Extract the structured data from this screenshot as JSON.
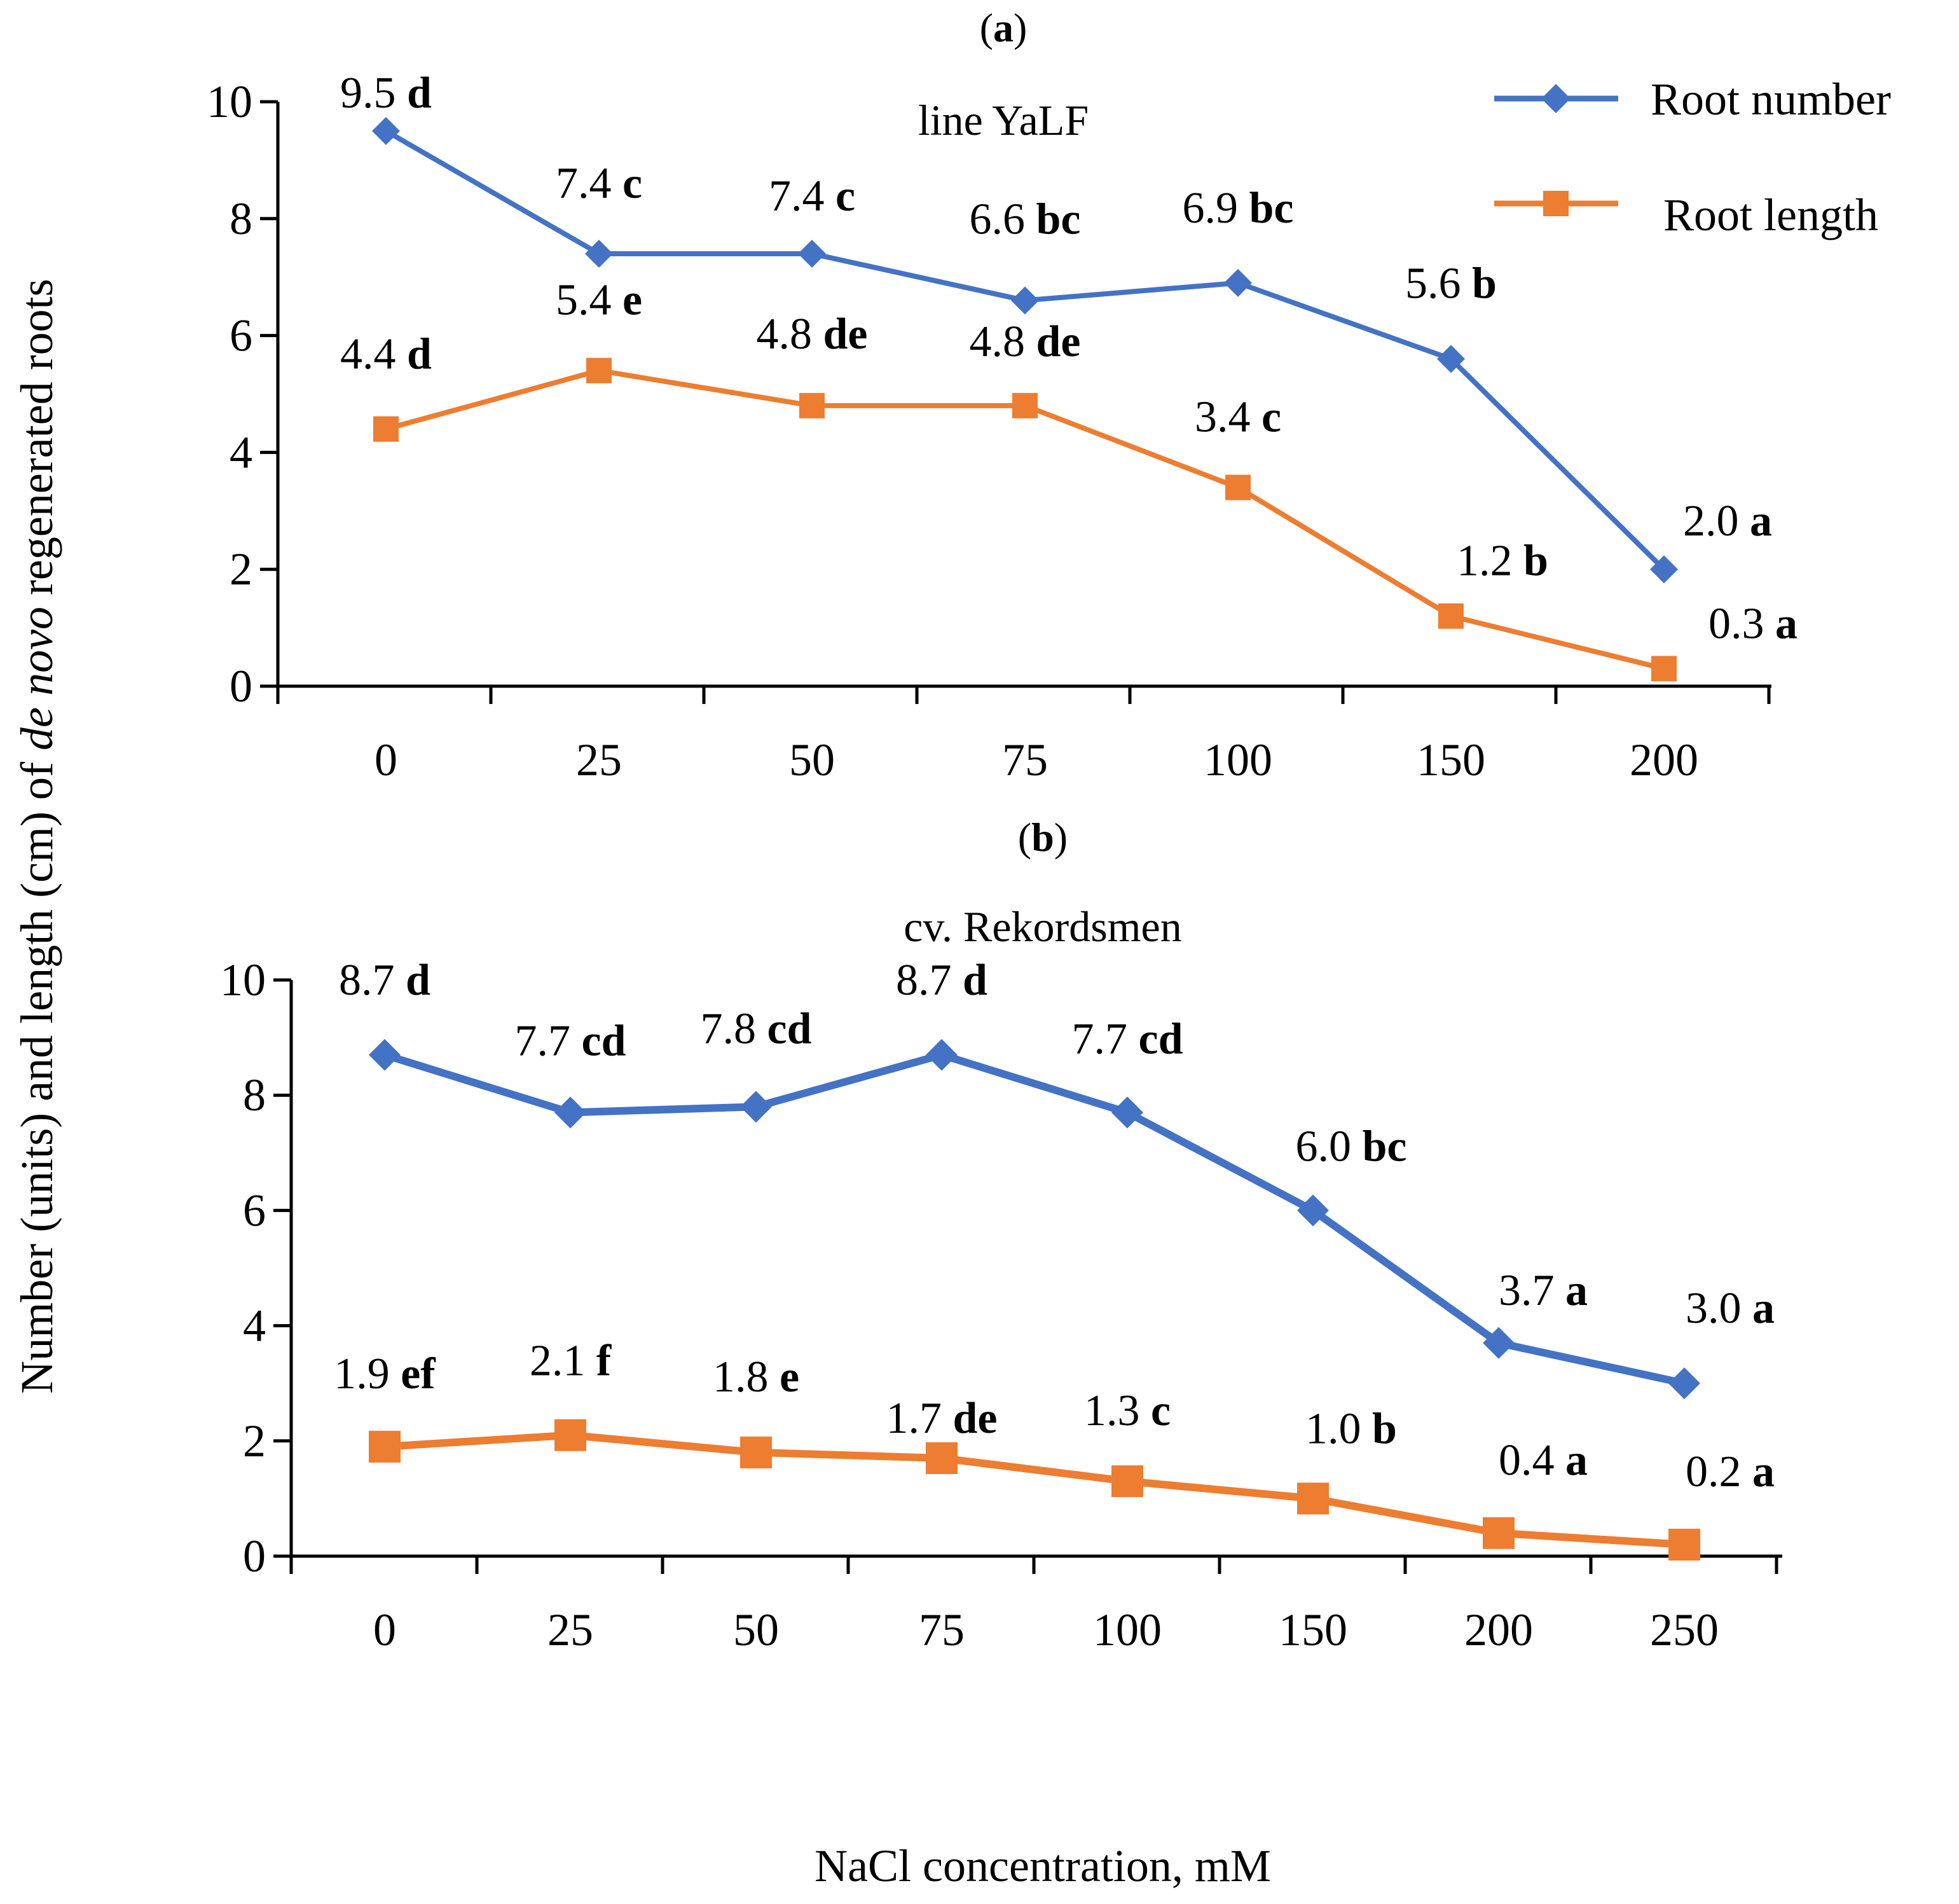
{
  "figure": {
    "y_axis_label": "Number (units) and length (cm) of ",
    "y_axis_label_italic": "de novo",
    "y_axis_label_tail": " regenerated roots",
    "x_axis_label": "NaCl concentration, mM"
  },
  "legend": {
    "items": [
      {
        "label": "Root number",
        "color": "#4472C4",
        "marker": "diamond"
      },
      {
        "label": "Root length",
        "color": "#ED7D31",
        "marker": "square"
      }
    ]
  },
  "chart_data": [
    {
      "type": "line",
      "panel_label": "(a)",
      "panel_letter": "a",
      "subtitle": "line YaLF",
      "categories": [
        "0",
        "25",
        "50",
        "75",
        "100",
        "150",
        "200"
      ],
      "ylim": [
        0,
        10
      ],
      "yticks": [
        "0",
        "2",
        "4",
        "6",
        "8",
        "10"
      ],
      "series": [
        {
          "name": "Root number",
          "color": "#4472C4",
          "marker": "diamond",
          "values": [
            9.5,
            7.4,
            7.4,
            6.6,
            6.9,
            5.6,
            2.0
          ],
          "labels": [
            "9.5",
            "7.4",
            "7.4",
            "6.6",
            "6.9",
            "5.6",
            "2.0"
          ],
          "letters": [
            "d",
            "c",
            "c",
            "bc",
            "bc",
            "b",
            "a"
          ]
        },
        {
          "name": "Root length",
          "color": "#ED7D31",
          "marker": "square",
          "values": [
            4.4,
            5.4,
            4.8,
            4.8,
            3.4,
            1.2,
            0.3
          ],
          "labels": [
            "4.4",
            "5.4",
            "4.8",
            "4.8",
            "3.4",
            "1.2",
            "0.3"
          ],
          "letters": [
            "d",
            "e",
            "de",
            "de",
            "c",
            "b",
            "a"
          ]
        }
      ]
    },
    {
      "type": "line",
      "panel_label": "(b)",
      "panel_letter": "b",
      "subtitle": "cv. Rekordsmen",
      "categories": [
        "0",
        "25",
        "50",
        "75",
        "100",
        "150",
        "200",
        "250"
      ],
      "ylim": [
        0,
        10
      ],
      "yticks": [
        "0",
        "2",
        "4",
        "6",
        "8",
        "10"
      ],
      "series": [
        {
          "name": "Root number",
          "color": "#4472C4",
          "marker": "diamond",
          "values": [
            8.7,
            7.7,
            7.8,
            8.7,
            7.7,
            6.0,
            3.7,
            3.0
          ],
          "labels": [
            "8.7",
            "7.7",
            "7.8",
            "8.7",
            "7.7",
            "6.0",
            "3.7",
            "3.0"
          ],
          "letters": [
            "d",
            "cd",
            "cd",
            "d",
            "cd",
            "bc",
            "a",
            "a"
          ]
        },
        {
          "name": "Root length",
          "color": "#ED7D31",
          "marker": "square",
          "values": [
            1.9,
            2.1,
            1.8,
            1.7,
            1.3,
            1.0,
            0.4,
            0.2
          ],
          "labels": [
            "1.9",
            "2.1",
            "1.8",
            "1.7",
            "1.3",
            "1.0",
            "0.4",
            "0.2"
          ],
          "letters": [
            "ef",
            "f",
            "e",
            "de",
            "c",
            "b",
            "a",
            "a"
          ]
        }
      ]
    }
  ]
}
